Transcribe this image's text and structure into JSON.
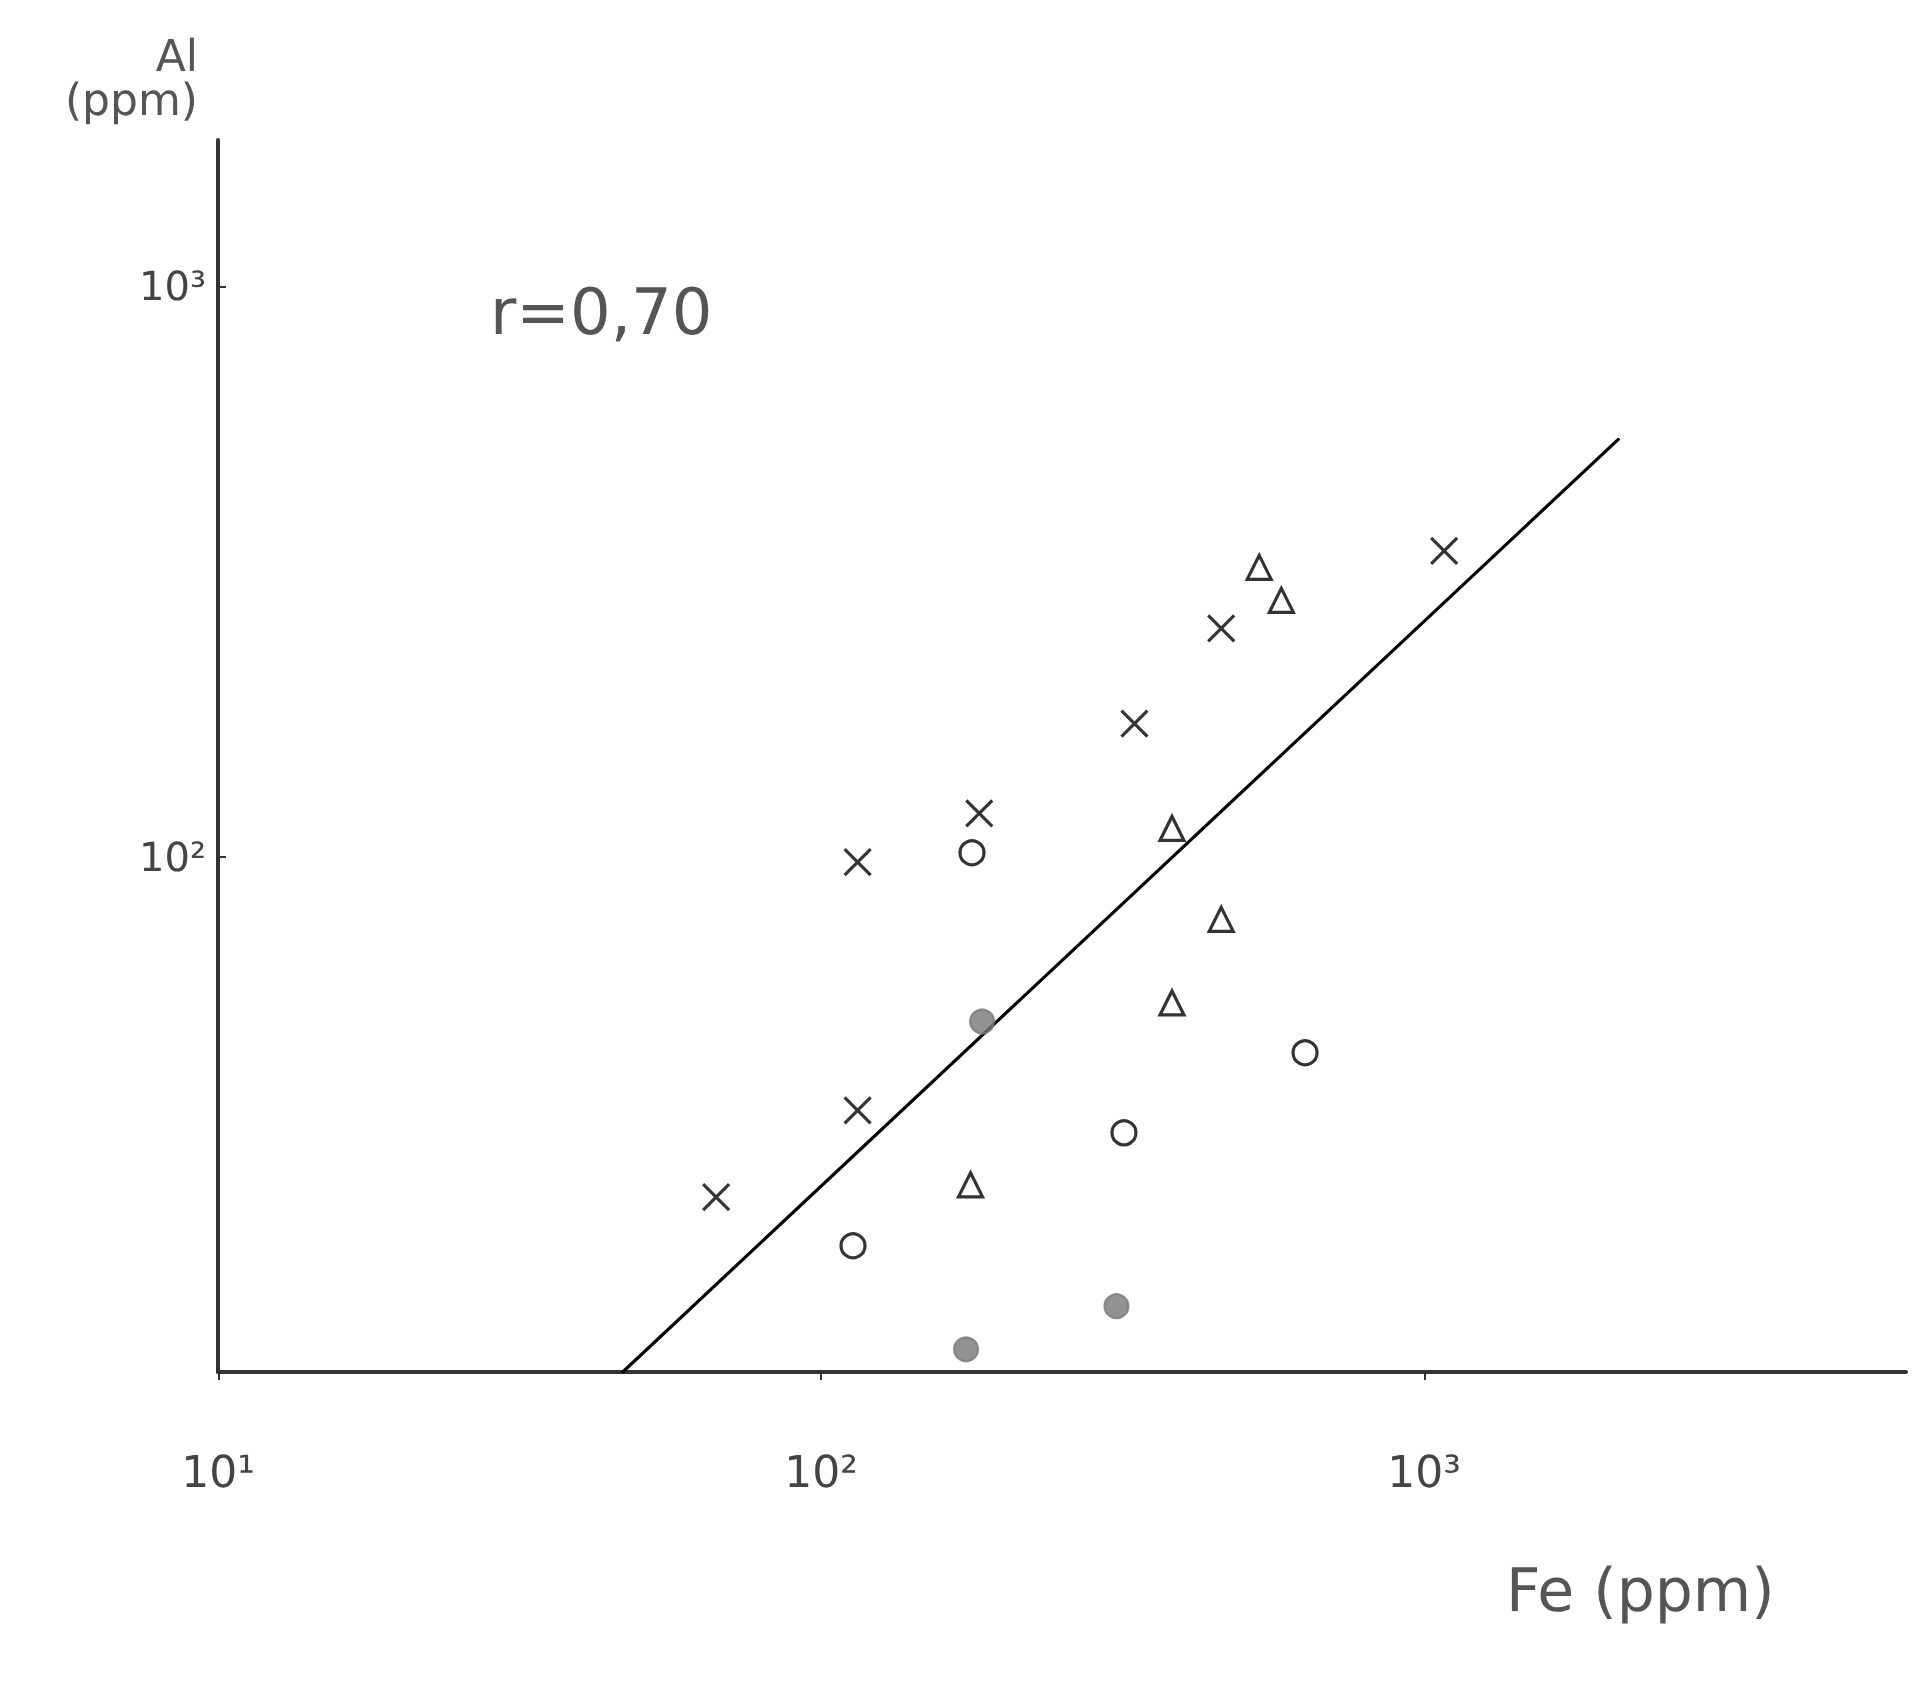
{
  "chart_data": {
    "type": "scatter",
    "xlabel": "Fe (ppm)",
    "ylabel": "Al (ppm)",
    "annotations": [
      "r=0,70"
    ],
    "log": "xy",
    "grid": false,
    "xlim": [
      10,
      6300
    ],
    "ylim": [
      12.5,
      1800
    ],
    "xticks": [
      {
        "value": 10,
        "label": "10¹"
      },
      {
        "value": 100,
        "label": "10²"
      },
      {
        "value": 1000,
        "label": "10³"
      }
    ],
    "yticks": [
      {
        "value": 100,
        "label": "10²"
      },
      {
        "value": 1000,
        "label": "10³"
      }
    ],
    "series": [
      {
        "color": "#000000",
        "marker": "cross",
        "x": [
          67,
          115,
          115,
          183,
          331,
          461,
          1080
        ],
        "values": [
          25.3,
          35.9,
          97.8,
          119,
          171,
          251,
          343
        ]
      },
      {
        "color": "#000000",
        "marker": "triangle",
        "x": [
          177,
          382,
          461,
          382,
          533,
          580
        ],
        "values": [
          26.6,
          55.4,
          77.6,
          112,
          321,
          281
        ]
      },
      {
        "color": "#000000",
        "marker": "circle",
        "x": [
          113,
          178,
          318,
          635
        ],
        "values": [
          20.8,
          101.5,
          32.8,
          45.3
        ]
      },
      {
        "color": "#777777",
        "marker": "circle",
        "x": [
          185,
          309,
          174
        ],
        "values": [
          51.4,
          16.3,
          13.7
        ]
      },
      {
        "type": "line",
        "color": "#000000",
        "marker": "none",
        "x": [
          46.9,
          2100
        ],
        "values": [
          12.5,
          538
        ]
      }
    ]
  }
}
